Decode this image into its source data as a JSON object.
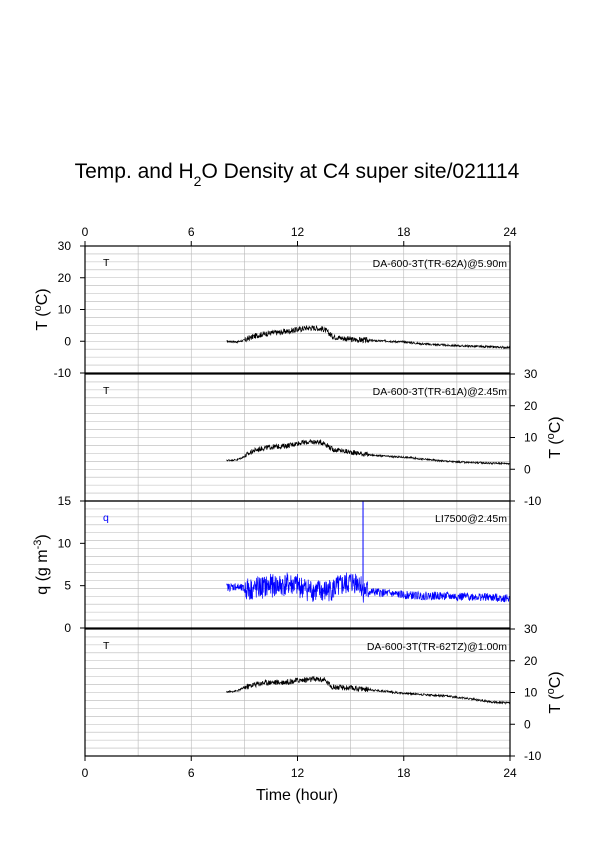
{
  "page_title": {
    "part1": "Temp. and H",
    "sub": "2",
    "part2": "O Density at C4 super site/021114"
  },
  "chart_data": [
    {
      "type": "line",
      "panel_letter": "T",
      "instrument": "DA-600-3T(TR-62A)@5.90m",
      "ylabel": {
        "main": "T (",
        "sup": "o",
        "end": "C)"
      },
      "y_axis_side": "left",
      "ylim": [
        -10,
        30
      ],
      "yticks": [
        -10,
        0,
        10,
        20,
        30
      ],
      "ytick_labels": [
        "-10",
        "0",
        "10",
        "20",
        "30"
      ],
      "line_color": "#000000",
      "series": [
        {
          "x": [
            8.0,
            8.6,
            9.0,
            9.5,
            10.0,
            10.5,
            11.0,
            11.5,
            12.0,
            12.5,
            13.0,
            13.5,
            14.0,
            14.5,
            15.0,
            15.5,
            16.0,
            16.5,
            17.0,
            17.5,
            18.0,
            18.5,
            19.0,
            19.5,
            20.0,
            20.5,
            21.0,
            21.5,
            22.0,
            22.5,
            23.0,
            23.5,
            24.0
          ],
          "y": [
            0.0,
            -0.2,
            0.3,
            1.5,
            2.2,
            2.6,
            2.8,
            3.2,
            3.7,
            4.2,
            4.2,
            3.8,
            1.5,
            1.0,
            0.6,
            0.4,
            0.3,
            0.1,
            0.1,
            -0.1,
            -0.2,
            -0.5,
            -0.8,
            -1.0,
            -1.1,
            -1.3,
            -1.4,
            -1.5,
            -1.6,
            -1.7,
            -1.8,
            -1.9,
            -2.0
          ],
          "noise": 0.9
        }
      ]
    },
    {
      "type": "line",
      "panel_letter": "T",
      "instrument": "DA-600-3T(TR-61A)@2.45m",
      "ylabel": {
        "main": "T (",
        "sup": "o",
        "end": "C)"
      },
      "y_axis_side": "right",
      "ylim": [
        -10,
        30
      ],
      "yticks": [
        -10,
        0,
        10,
        20,
        30
      ],
      "ytick_labels": [
        "-10",
        "0",
        "10",
        "20",
        "30"
      ],
      "line_color": "#000000",
      "series": [
        {
          "x": [
            8.0,
            8.6,
            9.0,
            9.5,
            10.0,
            10.5,
            11.0,
            11.5,
            12.0,
            12.5,
            13.0,
            13.5,
            14.0,
            14.5,
            15.0,
            15.5,
            16.0,
            16.5,
            17.0,
            17.5,
            18.0,
            18.5,
            19.0,
            19.5,
            20.0,
            20.5,
            21.0,
            21.5,
            22.0,
            22.5,
            23.0,
            23.5,
            24.0
          ],
          "y": [
            2.8,
            3.0,
            4.0,
            5.8,
            6.6,
            7.0,
            7.2,
            7.5,
            8.2,
            8.5,
            8.6,
            8.3,
            6.2,
            5.8,
            5.4,
            5.0,
            4.6,
            4.3,
            4.1,
            3.9,
            3.8,
            3.6,
            3.2,
            3.0,
            2.7,
            2.5,
            2.3,
            2.2,
            2.1,
            2.0,
            1.9,
            1.9,
            1.8
          ],
          "noise": 0.8
        }
      ]
    },
    {
      "type": "line",
      "panel_letter": "q",
      "instrument": "LI7500@2.45m",
      "ylabel": {
        "main": "q (g m",
        "sup": "-3",
        "end": ")"
      },
      "y_axis_side": "left",
      "ylim": [
        0,
        15
      ],
      "yticks": [
        0,
        5,
        10,
        15
      ],
      "ytick_labels": [
        "0",
        "5",
        "10",
        "15"
      ],
      "line_color": "#0000ff",
      "series": [
        {
          "x": [
            8.0,
            8.5,
            9.0,
            9.5,
            10.0,
            10.5,
            11.0,
            11.5,
            12.0,
            12.5,
            13.0,
            13.5,
            14.0,
            14.5,
            15.0,
            15.5,
            15.7,
            16.0,
            16.5,
            17.0,
            17.5,
            18.0,
            19.0,
            20.0,
            21.0,
            22.0,
            23.0,
            24.0
          ],
          "y": [
            4.8,
            4.9,
            4.6,
            4.6,
            4.8,
            5.0,
            5.0,
            5.2,
            5.0,
            4.6,
            4.4,
            4.3,
            4.6,
            5.0,
            5.4,
            5.5,
            4.4,
            4.3,
            4.2,
            4.1,
            4.0,
            3.9,
            3.8,
            3.8,
            3.7,
            3.7,
            3.6,
            3.5
          ],
          "noise": 1.4,
          "spike_x": 15.7,
          "spike_top": 15
        }
      ]
    },
    {
      "type": "line",
      "panel_letter": "T",
      "instrument": "DA-600-3T(TR-62TZ)@1.00m",
      "ylabel": {
        "main": "T (",
        "sup": "o",
        "end": "C)"
      },
      "y_axis_side": "right",
      "ylim": [
        -10,
        30
      ],
      "yticks": [
        -10,
        0,
        10,
        20,
        30
      ],
      "ytick_labels": [
        "-10",
        "0",
        "10",
        "20",
        "30"
      ],
      "line_color": "#000000",
      "series": [
        {
          "x": [
            8.0,
            8.6,
            9.0,
            9.5,
            10.0,
            10.5,
            11.0,
            11.5,
            12.0,
            12.5,
            13.0,
            13.5,
            14.0,
            14.5,
            15.0,
            15.5,
            16.0,
            16.5,
            17.0,
            17.5,
            18.0,
            18.5,
            19.0,
            19.5,
            20.0,
            20.5,
            21.0,
            21.5,
            22.0,
            22.5,
            23.0,
            23.5,
            24.0
          ],
          "y": [
            10.2,
            10.5,
            11.6,
            12.4,
            13.0,
            13.2,
            13.2,
            13.4,
            13.8,
            14.0,
            14.2,
            14.0,
            11.7,
            11.5,
            11.4,
            11.2,
            11.0,
            10.6,
            10.4,
            10.0,
            9.8,
            9.6,
            9.4,
            9.2,
            9.0,
            8.8,
            8.5,
            8.2,
            7.8,
            7.4,
            7.0,
            6.8,
            6.8
          ],
          "noise": 0.9
        }
      ]
    }
  ],
  "x_axis": {
    "label": "Time (hour)",
    "ticks": [
      0,
      6,
      12,
      18,
      24
    ],
    "tick_labels": [
      "0",
      "6",
      "12",
      "18",
      "24"
    ],
    "xlim": [
      0,
      24
    ]
  }
}
